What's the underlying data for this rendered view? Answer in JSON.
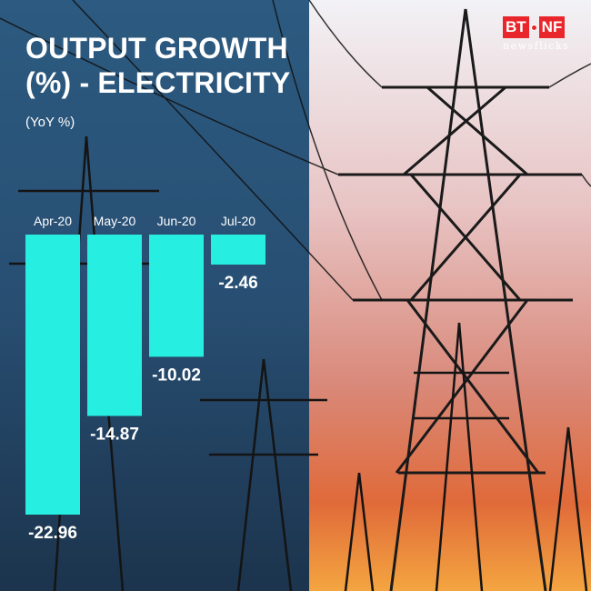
{
  "title_lines": [
    "OUTPUT GROWTH",
    "(%) - ELECTRICITY"
  ],
  "unit_label": "(YoY %)",
  "logo": {
    "left": "BT",
    "right": "NF",
    "subtitle": "newsflicks"
  },
  "colors": {
    "bar": "#26eee0",
    "text": "#ffffff",
    "sky_left": "#23466a",
    "sky_right": "#e9a88c",
    "logo_red": "#e8262b"
  },
  "background": {
    "description_icon": "power-transmission-towers-icon"
  },
  "chart_data": {
    "type": "bar",
    "categories": [
      "Apr-20",
      "May-20",
      "Jun-20",
      "Jul-20"
    ],
    "values": [
      -22.96,
      -14.87,
      -10.02,
      -2.46
    ],
    "data_labels": [
      "-22.96",
      "-14.87",
      "-10.02",
      "-2.46"
    ],
    "title": "OUTPUT GROWTH (%) - ELECTRICITY",
    "ylabel": "(YoY %)",
    "ylim": [
      -22.96,
      0
    ],
    "grid": false,
    "legend": "none"
  }
}
